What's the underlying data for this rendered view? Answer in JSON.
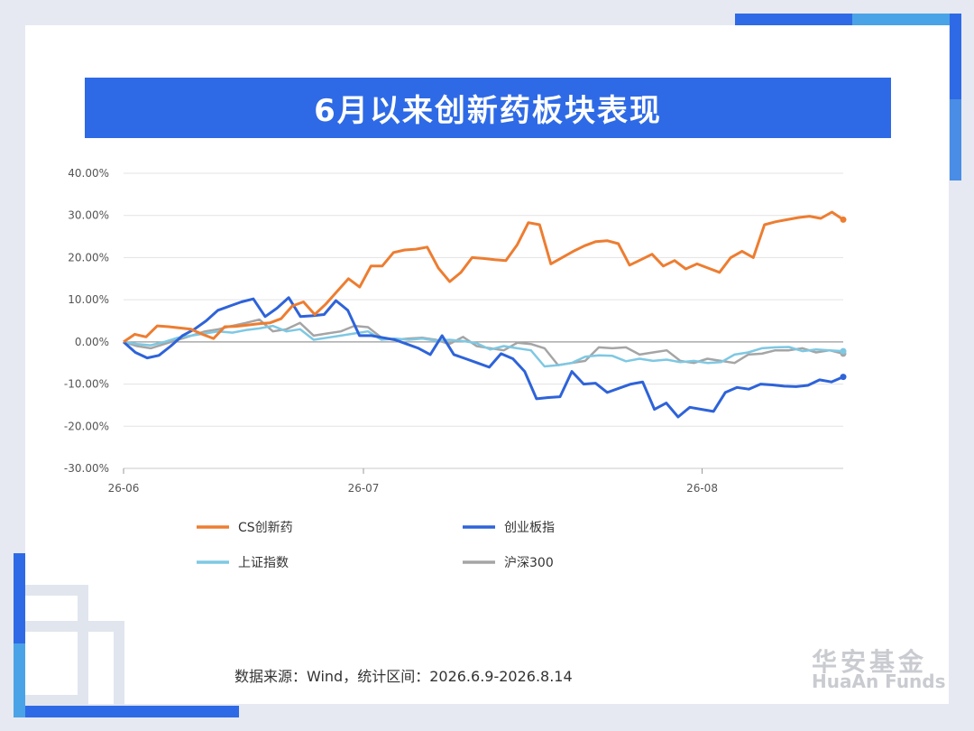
{
  "title": "6月以来创新药板块表现",
  "source_note": "数据来源：Wind，统计区间：2026.6.9-2026.8.14",
  "logo": {
    "cn": "华安基金",
    "en": "HuaAn Funds"
  },
  "colors": {
    "title_bar": "#2e6ae6",
    "accent_blue": "#2e6ae6",
    "accent_light": "#4aa3e6"
  },
  "chart_data": {
    "type": "line",
    "ylim": [
      -30,
      40
    ],
    "y_ticks": [
      40,
      30,
      20,
      10,
      0,
      -10,
      -20,
      -30
    ],
    "y_tick_labels": [
      "40.00%",
      "30.00%",
      "20.00%",
      "10.00%",
      "0.00%",
      "-10.00%",
      "-20.00%",
      "-30.00%"
    ],
    "x_ticks": [
      0,
      17,
      41
    ],
    "x_tick_labels": [
      "26-06",
      "26-07",
      "26-08"
    ],
    "xlim": [
      0,
      51
    ],
    "legend_position": "bottom",
    "grid": true,
    "series": [
      {
        "name": "CS创新药",
        "color": "#ed7d31",
        "values": [
          0,
          1.8,
          1.2,
          3.8,
          3.6,
          3.3,
          3.0,
          1.8,
          0.8,
          3.6,
          3.7,
          4.0,
          4.3,
          4.5,
          5.5,
          8.5,
          9.5,
          6.5,
          9.0,
          12.0,
          15.0,
          13.0,
          18.0,
          18.0,
          21.2,
          21.8,
          22.0,
          22.5,
          17.5,
          14.3,
          16.5,
          20.0,
          19.8,
          19.5,
          19.3,
          23.0,
          28.3,
          27.8,
          18.5,
          20.0,
          21.5,
          22.8,
          23.8,
          24.0,
          23.3,
          18.2,
          19.5,
          20.8,
          18.0,
          19.3,
          17.3,
          18.5,
          17.5,
          16.5,
          20.0,
          21.5,
          20.0,
          27.8,
          28.5,
          29.0,
          29.5,
          29.8,
          29.3,
          30.8,
          29.0
        ]
      },
      {
        "name": "创业板指",
        "color": "#2e63d9",
        "values": [
          0,
          -2.5,
          -3.8,
          -3.2,
          -1.0,
          1.5,
          3.0,
          5.0,
          7.5,
          8.5,
          9.5,
          10.2,
          6.0,
          8.0,
          10.5,
          6.0,
          6.2,
          6.5,
          9.8,
          7.5,
          1.5,
          1.5,
          1.0,
          0.5,
          -0.5,
          -1.5,
          -3.0,
          1.5,
          -3.0,
          -4.0,
          -5.0,
          -6.0,
          -2.8,
          -4.0,
          -7.0,
          -13.5,
          -13.2,
          -13.0,
          -7.0,
          -10.0,
          -9.8,
          -12.0,
          -11.0,
          -10.0,
          -9.5,
          -16.0,
          -14.5,
          -17.8,
          -15.5,
          -16.0,
          -16.5,
          -12.0,
          -10.8,
          -11.2,
          -10.0,
          -10.2,
          -10.5,
          -10.6,
          -10.3,
          -9.0,
          -9.5,
          -8.3
        ]
      },
      {
        "name": "上证指数",
        "color": "#7ec8e3",
        "values": [
          0,
          -0.5,
          -0.8,
          0,
          1.0,
          1.5,
          2.0,
          2.5,
          2.2,
          2.8,
          3.2,
          3.8,
          2.5,
          3.0,
          0.5,
          1.0,
          1.5,
          2.0,
          2.5,
          0.5,
          0.8,
          0.5,
          0.8,
          0.3,
          0.5,
          0.2,
          -0.3,
          -1.8,
          -1.0,
          -1.5,
          -2.0,
          -5.8,
          -5.5,
          -5.0,
          -3.5,
          -3.2,
          -3.3,
          -4.6,
          -4.0,
          -4.5,
          -4.2,
          -4.8,
          -4.5,
          -5.0,
          -4.8,
          -3.0,
          -2.5,
          -1.5,
          -1.3,
          -1.2,
          -2.2,
          -1.8,
          -2.0,
          -2.2
        ]
      },
      {
        "name": "沪深300",
        "color": "#a5a5a5",
        "values": [
          0,
          -1.0,
          -1.5,
          -0.5,
          0.5,
          1.5,
          2.5,
          3.0,
          3.8,
          4.5,
          5.3,
          2.5,
          3.0,
          4.5,
          1.5,
          2.0,
          2.5,
          3.8,
          3.5,
          1.0,
          0.5,
          0.8,
          1.0,
          0.5,
          -0.5,
          1.2,
          -1.0,
          -1.5,
          -2.0,
          -0.2,
          -0.5,
          -1.5,
          -5.5,
          -5.0,
          -4.5,
          -1.3,
          -1.5,
          -1.3,
          -3.0,
          -2.5,
          -2.0,
          -4.5,
          -5.0,
          -4.0,
          -4.5,
          -5.0,
          -3.0,
          -2.8,
          -2.0,
          -2.0,
          -1.5,
          -2.5,
          -2.0,
          -2.8
        ]
      }
    ]
  }
}
